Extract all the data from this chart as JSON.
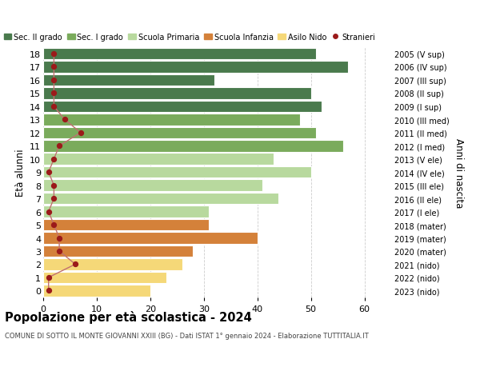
{
  "ages": [
    18,
    17,
    16,
    15,
    14,
    13,
    12,
    11,
    10,
    9,
    8,
    7,
    6,
    5,
    4,
    3,
    2,
    1,
    0
  ],
  "values": [
    51,
    57,
    32,
    50,
    52,
    48,
    51,
    56,
    43,
    50,
    41,
    44,
    31,
    31,
    40,
    28,
    26,
    23,
    20
  ],
  "stranieri": [
    2,
    2,
    2,
    2,
    2,
    4,
    7,
    3,
    2,
    1,
    2,
    2,
    1,
    2,
    3,
    3,
    6,
    1,
    1
  ],
  "right_labels": [
    "2005 (V sup)",
    "2006 (IV sup)",
    "2007 (III sup)",
    "2008 (II sup)",
    "2009 (I sup)",
    "2010 (III med)",
    "2011 (II med)",
    "2012 (I med)",
    "2013 (V ele)",
    "2014 (IV ele)",
    "2015 (III ele)",
    "2016 (II ele)",
    "2017 (I ele)",
    "2018 (mater)",
    "2019 (mater)",
    "2020 (mater)",
    "2021 (nido)",
    "2022 (nido)",
    "2023 (nido)"
  ],
  "bar_colors": [
    "#4a7a4d",
    "#4a7a4d",
    "#4a7a4d",
    "#4a7a4d",
    "#4a7a4d",
    "#7aab5c",
    "#7aab5c",
    "#7aab5c",
    "#b8d99e",
    "#b8d99e",
    "#b8d99e",
    "#b8d99e",
    "#b8d99e",
    "#d4813a",
    "#d4813a",
    "#d4813a",
    "#f5d878",
    "#f5d878",
    "#f5d878"
  ],
  "legend_labels": [
    "Sec. II grado",
    "Sec. I grado",
    "Scuola Primaria",
    "Scuola Infanzia",
    "Asilo Nido",
    "Stranieri"
  ],
  "legend_colors": [
    "#4a7a4d",
    "#7aab5c",
    "#b8d99e",
    "#d4813a",
    "#f5d878",
    "#9b1a1a"
  ],
  "stranieri_color": "#9b1a1a",
  "stranieri_line_color": "#c07070",
  "title": "Popolazione per età scolastica - 2024",
  "subtitle": "COMUNE DI SOTTO IL MONTE GIOVANNI XXIII (BG) - Dati ISTAT 1° gennaio 2024 - Elaborazione TUTTITALIA.IT",
  "ylabel": "Età alunni",
  "ylabel2": "Anni di nascita",
  "xlim": [
    0,
    65
  ],
  "xticks": [
    0,
    10,
    20,
    30,
    40,
    50,
    60
  ],
  "background_color": "#ffffff",
  "grid_color": "#cccccc"
}
